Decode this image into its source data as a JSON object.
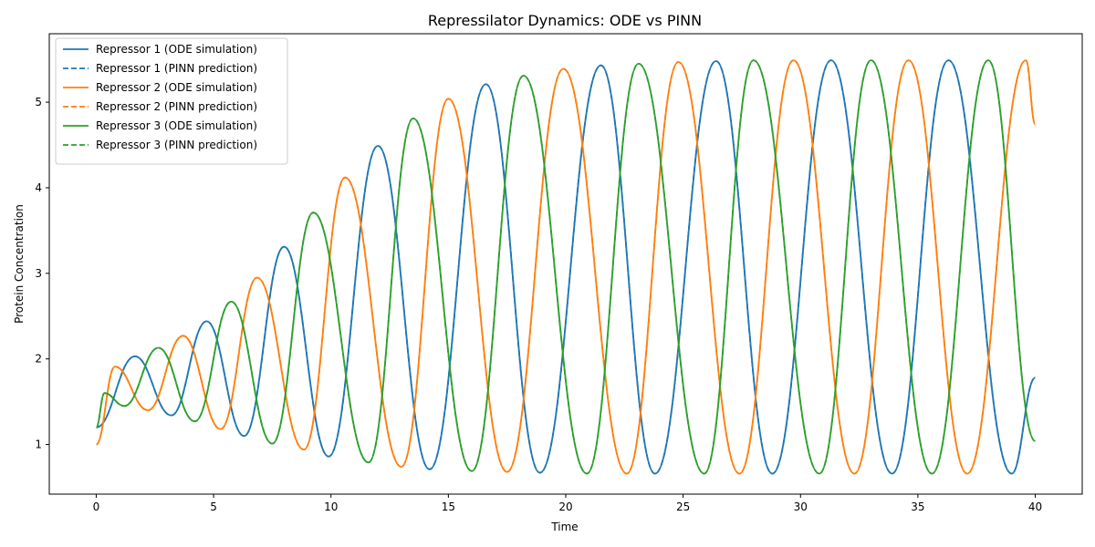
{
  "chart_data": {
    "type": "line",
    "title": "Repressilator Dynamics: ODE vs PINN",
    "xlabel": "Time",
    "ylabel": "Protein Concentration",
    "xlim": [
      -2,
      42
    ],
    "ylim": [
      0.42,
      5.8
    ],
    "xticks": [
      0,
      5,
      10,
      15,
      20,
      25,
      30,
      35,
      40
    ],
    "yticks": [
      1,
      2,
      3,
      4,
      5
    ],
    "grid": false,
    "legend_position": "upper-left",
    "series": [
      {
        "name": "Repressor 1 (ODE simulation)",
        "color": "#1f77b4",
        "style": "solid",
        "x": [
          0,
          1.65,
          3.2,
          4.7,
          6.3,
          8.0,
          9.9,
          12.0,
          14.2,
          16.6,
          18.9,
          21.5,
          23.8,
          26.4,
          28.8,
          31.3,
          33.9,
          36.3,
          39.0,
          40
        ],
        "y": [
          1.2,
          2.03,
          1.34,
          2.44,
          1.1,
          3.31,
          0.86,
          4.49,
          0.71,
          5.21,
          0.67,
          5.43,
          0.66,
          5.48,
          0.66,
          5.49,
          0.66,
          5.49,
          0.66,
          1.78
        ]
      },
      {
        "name": "Repressor 1 (PINN prediction)",
        "color": "#1f77b4",
        "style": "dashed",
        "x": [
          0,
          1.65,
          3.2,
          4.7,
          6.3,
          8.0,
          9.9,
          12.0,
          14.2,
          16.6,
          18.9,
          21.5,
          23.8,
          26.4,
          28.8,
          31.3,
          33.9,
          36.3,
          39.0,
          40
        ],
        "y": [
          1.2,
          2.03,
          1.34,
          2.44,
          1.1,
          3.31,
          0.86,
          4.49,
          0.71,
          5.21,
          0.67,
          5.43,
          0.66,
          5.48,
          0.66,
          5.49,
          0.66,
          5.49,
          0.66,
          1.78
        ]
      },
      {
        "name": "Repressor 2 (ODE simulation)",
        "color": "#ff7f0e",
        "style": "solid",
        "x": [
          0,
          0.8,
          2.2,
          3.7,
          5.3,
          6.85,
          8.85,
          10.6,
          13.0,
          15.0,
          17.5,
          19.9,
          22.6,
          24.8,
          27.4,
          29.7,
          32.3,
          34.6,
          37.1,
          39.6,
          40
        ],
        "y": [
          1.0,
          1.91,
          1.4,
          2.27,
          1.18,
          2.95,
          0.94,
          4.12,
          0.74,
          5.04,
          0.68,
          5.39,
          0.66,
          5.47,
          0.66,
          5.49,
          0.66,
          5.49,
          0.66,
          5.49,
          4.74
        ]
      },
      {
        "name": "Repressor 2 (PINN prediction)",
        "color": "#ff7f0e",
        "style": "dashed",
        "x": [
          0,
          0.8,
          2.2,
          3.7,
          5.3,
          6.85,
          8.85,
          10.6,
          13.0,
          15.0,
          17.5,
          19.9,
          22.6,
          24.8,
          27.4,
          29.7,
          32.3,
          34.6,
          37.1,
          39.6,
          40
        ],
        "y": [
          1.0,
          1.91,
          1.4,
          2.27,
          1.18,
          2.95,
          0.94,
          4.12,
          0.74,
          5.04,
          0.68,
          5.39,
          0.66,
          5.47,
          0.66,
          5.49,
          0.66,
          5.49,
          0.66,
          5.49,
          4.74
        ]
      },
      {
        "name": "Repressor 3 (ODE simulation)",
        "color": "#2ca02c",
        "style": "solid",
        "x": [
          0,
          0.35,
          1.2,
          2.65,
          4.2,
          5.75,
          7.5,
          9.25,
          11.6,
          13.5,
          16.0,
          18.2,
          20.9,
          23.1,
          25.9,
          28.0,
          30.8,
          33.0,
          35.6,
          38.0,
          40
        ],
        "y": [
          1.2,
          1.6,
          1.45,
          2.13,
          1.27,
          2.67,
          1.01,
          3.71,
          0.79,
          4.81,
          0.69,
          5.31,
          0.66,
          5.45,
          0.66,
          5.49,
          0.66,
          5.49,
          0.66,
          5.49,
          1.04
        ]
      },
      {
        "name": "Repressor 3 (PINN prediction)",
        "color": "#2ca02c",
        "style": "dashed",
        "x": [
          0,
          0.35,
          1.2,
          2.65,
          4.2,
          5.75,
          7.5,
          9.25,
          11.6,
          13.5,
          16.0,
          18.2,
          20.9,
          23.1,
          25.9,
          28.0,
          30.8,
          33.0,
          35.6,
          38.0,
          40
        ],
        "y": [
          1.2,
          1.6,
          1.45,
          2.13,
          1.27,
          2.67,
          1.01,
          3.71,
          0.79,
          4.81,
          0.69,
          5.31,
          0.66,
          5.45,
          0.66,
          5.49,
          0.66,
          5.49,
          0.66,
          5.49,
          1.04
        ]
      }
    ]
  }
}
